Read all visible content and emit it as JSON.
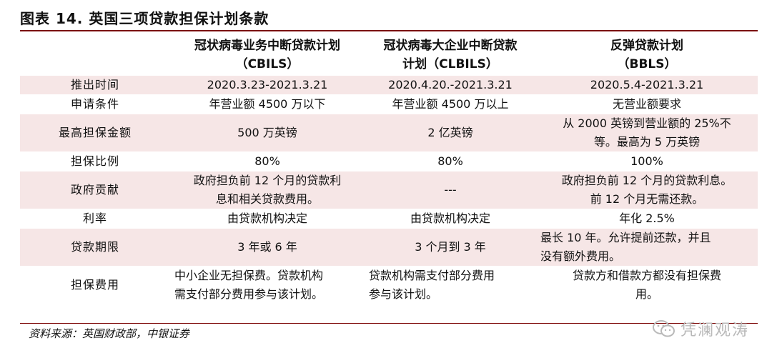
{
  "title": "图表 14. 英国三项贷款担保计划条款",
  "columns": [
    {
      "line1": "冠状病毒业务中断贷款计划",
      "line2": "（CBILS）"
    },
    {
      "line1": "冠状病毒大企业中断贷款",
      "line2": "计划（CLBILS）"
    },
    {
      "line1": "反弹贷款计划",
      "line2": "（BBLS）"
    }
  ],
  "rows": [
    {
      "label": "推出时间",
      "c1": [
        "2020.3.23-2021.3.21"
      ],
      "c2": [
        "2020.4.20.-2021.3.21"
      ],
      "c3": [
        "2020.5.4-2021.3.21"
      ]
    },
    {
      "label": "申请条件",
      "c1": [
        "年营业额 4500 万以下"
      ],
      "c2": [
        "年营业额 4500 万以上"
      ],
      "c3": [
        "无营业额要求"
      ]
    },
    {
      "label": "最高担保金额",
      "c1": [
        "500 万英镑"
      ],
      "c2": [
        "2 亿英镑"
      ],
      "c3": [
        "从 2000 英镑到营业额的 25%不",
        "等。最高为 5 万英镑"
      ]
    },
    {
      "label": "担保比例",
      "c1": [
        "80%"
      ],
      "c2": [
        "80%"
      ],
      "c3": [
        "100%"
      ]
    },
    {
      "label": "政府贡献",
      "c1": [
        "政府担负前 12 个月的贷款利",
        "息和相关贷款费用。"
      ],
      "c2": [
        "---"
      ],
      "c3": [
        "政府担负前 12 个月的贷款利息。",
        "前 12 个月无需还款。"
      ]
    },
    {
      "label": "利率",
      "c1": [
        "由贷款机构决定"
      ],
      "c2": [
        "由贷款机构决定"
      ],
      "c3": [
        "年化 2.5%"
      ]
    },
    {
      "label": "贷款期限",
      "c1": [
        "3 年或 6 年"
      ],
      "c2": [
        "3 个月到 3 年"
      ],
      "c3": [
        "最长 10 年。允许提前还款，并且",
        "没有额外费用。"
      ]
    },
    {
      "label": "担保费用",
      "c1": [
        "中小企业无担保费。贷款机构",
        "需支付部分费用参与该计划。"
      ],
      "c2": [
        "贷款机构需支付部分费用",
        "参与该计划。"
      ],
      "c3": [
        "贷款方和借款方都没有担保费",
        "用。"
      ]
    }
  ],
  "source": "资料来源：英国财政部，中银证券",
  "watermark": "凭澜观涛",
  "colors": {
    "shade": "#f6e6e6",
    "rule": "#7a0000"
  }
}
